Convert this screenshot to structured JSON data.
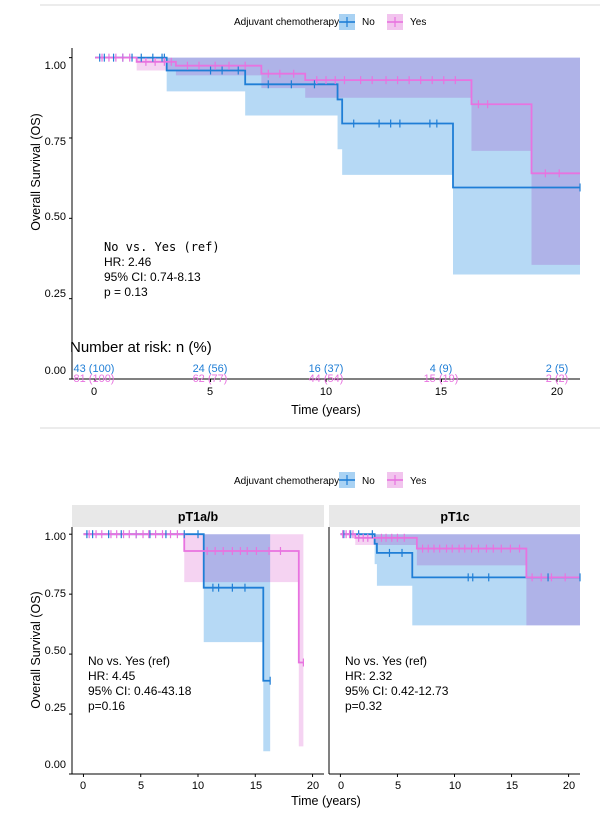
{
  "colors": {
    "no": "#1f7ed6",
    "no_fill": "#a9d2f3",
    "yes": "#e873e0",
    "yes_fill": "#f2c4ee",
    "overlap": "#c4b3f0",
    "strip": "#e8e8e8",
    "divider": "#d9d9d9"
  },
  "legend": {
    "title": "Adjuvant chemotherapy",
    "no": "No",
    "yes": "Yes"
  },
  "top": {
    "ylabel": "Overall Survival (OS)",
    "xlabel": "Time (years)",
    "yticks": [
      "1.00",
      "0.75",
      "0.50",
      "0.25",
      "0.00"
    ],
    "xticks": [
      "0",
      "5",
      "10",
      "15",
      "20"
    ],
    "stats": [
      "No vs. Yes (ref)",
      "HR: 2.46",
      "95% CI: 0.74-8.13",
      "p = 0.13"
    ],
    "risk_title": "Number at risk: n (%)",
    "risk_no": [
      "43 (100)",
      "24 (56)",
      "16 (37)",
      "4 (9)",
      "2 (5)"
    ],
    "risk_yes": [
      "81 (100)",
      "62 (77)",
      "44 (54)",
      "15 (19)",
      "2 (2)"
    ]
  },
  "bottom": {
    "ylabel": "Overall Survival (OS)",
    "xlabel": "Time (years)",
    "yticks": [
      "1.00",
      "0.75",
      "0.50",
      "0.25",
      "0.00"
    ],
    "xticks": [
      "0",
      "5",
      "10",
      "15",
      "20"
    ],
    "left": {
      "strip": "pT1a/b",
      "stats": [
        "No vs. Yes (ref)",
        "HR: 4.45",
        "95% CI: 0.46-43.18",
        "p=0.16"
      ]
    },
    "right": {
      "strip": "pT1c",
      "stats": [
        "No vs. Yes (ref)",
        "HR: 2.32",
        "95% CI: 0.42-12.73",
        "p=0.32"
      ]
    }
  },
  "chart_data": [
    {
      "type": "line",
      "xlabel": "Time (years)",
      "ylabel": "Overall Survival (OS)",
      "xlim": [
        -1,
        21
      ],
      "ylim": [
        0,
        1.03
      ],
      "legend": "top",
      "series": [
        {
          "name": "No",
          "steps": [
            [
              0,
              1.0
            ],
            [
              3.1,
              0.96
            ],
            [
              6.5,
              0.917
            ],
            [
              10.5,
              0.87
            ],
            [
              10.7,
              0.795
            ],
            [
              15.5,
              0.596
            ],
            [
              21,
              0.596
            ]
          ],
          "ci_upper": [
            [
              0,
              1.0
            ],
            [
              3.1,
              1.0
            ],
            [
              6.5,
              1.0
            ],
            [
              10.5,
              1.0
            ],
            [
              10.7,
              1.0
            ],
            [
              15.5,
              1.0
            ],
            [
              21,
              1.0
            ]
          ],
          "ci_lower": [
            [
              0,
              1.0
            ],
            [
              3.1,
              0.895
            ],
            [
              6.5,
              0.82
            ],
            [
              10.5,
              0.715
            ],
            [
              10.7,
              0.635
            ],
            [
              15.5,
              0.325
            ],
            [
              21,
              0.325
            ]
          ],
          "censor_t": [
            0.2,
            0.4,
            0.8,
            1.2,
            1.6,
            2.0,
            2.5,
            2.9,
            3.0,
            5.0,
            5.5,
            6.2,
            7.5,
            8.5,
            9.5,
            11.2,
            12.3,
            12.8,
            13.2,
            14.5,
            14.8,
            21.0
          ]
        },
        {
          "name": "Yes",
          "steps": [
            [
              0,
              1.0
            ],
            [
              1.8,
              0.987
            ],
            [
              3.5,
              0.975
            ],
            [
              7.2,
              0.95
            ],
            [
              9.1,
              0.93
            ],
            [
              16.3,
              0.855
            ],
            [
              18.9,
              0.64
            ],
            [
              21,
              0.64
            ]
          ],
          "ci_upper": [
            [
              0,
              1.0
            ],
            [
              1.8,
              1.0
            ],
            [
              3.5,
              1.0
            ],
            [
              7.2,
              1.0
            ],
            [
              9.1,
              1.0
            ],
            [
              16.3,
              1.0
            ],
            [
              18.9,
              1.0
            ],
            [
              21,
              1.0
            ]
          ],
          "ci_lower": [
            [
              0,
              1.0
            ],
            [
              1.8,
              0.96
            ],
            [
              3.5,
              0.945
            ],
            [
              7.2,
              0.905
            ],
            [
              9.1,
              0.875
            ],
            [
              16.3,
              0.71
            ],
            [
              18.9,
              0.355
            ],
            [
              21,
              0.355
            ]
          ],
          "censor_t": [
            0.3,
            0.6,
            0.9,
            1.2,
            1.5,
            2.2,
            2.6,
            3.0,
            3.3,
            4.0,
            4.5,
            5.2,
            5.8,
            6.5,
            7.5,
            8.0,
            8.6,
            9.6,
            10.0,
            10.4,
            10.8,
            11.5,
            12.0,
            12.6,
            13.1,
            13.6,
            14.1,
            14.6,
            15.1,
            15.6,
            16.6,
            17.0,
            19.5,
            20.1
          ]
        }
      ],
      "risk_table": {
        "times": [
          0,
          5,
          10,
          15,
          20
        ],
        "No": [
          43,
          24,
          16,
          4,
          2
        ],
        "Yes": [
          81,
          62,
          44,
          15,
          2
        ]
      }
    },
    {
      "type": "line",
      "facet": "pT1a/b",
      "xlabel": "Time (years)",
      "ylabel": "Overall Survival (OS)",
      "xlim": [
        -1,
        21
      ],
      "ylim": [
        0,
        1.03
      ],
      "series": [
        {
          "name": "No",
          "steps": [
            [
              0,
              1.0
            ],
            [
              10.5,
              0.777
            ],
            [
              15.7,
              0.389
            ],
            [
              16.3,
              0.389
            ]
          ],
          "ci_upper": [
            [
              0,
              1.0
            ],
            [
              10.5,
              1.0
            ],
            [
              15.7,
              1.0
            ],
            [
              16.3,
              1.0
            ]
          ],
          "ci_lower": [
            [
              0,
              1.0
            ],
            [
              10.5,
              0.55
            ],
            [
              15.7,
              0.095
            ],
            [
              16.3,
              0.095
            ]
          ],
          "censor_t": [
            0.3,
            0.8,
            2.2,
            3.3,
            4.6,
            5.8,
            7.2,
            8.8,
            10.0,
            11.3,
            11.8,
            13.0,
            14.1,
            16.3
          ]
        },
        {
          "name": "Yes",
          "steps": [
            [
              0,
              1.0
            ],
            [
              8.8,
              0.93
            ],
            [
              18.8,
              0.465
            ],
            [
              19.2,
              0.465
            ]
          ],
          "ci_upper": [
            [
              0,
              1.0
            ],
            [
              8.8,
              1.0
            ],
            [
              18.8,
              1.0
            ],
            [
              19.2,
              1.0
            ]
          ],
          "ci_lower": [
            [
              0,
              1.0
            ],
            [
              8.8,
              0.8
            ],
            [
              18.8,
              0.115
            ],
            [
              19.2,
              0.115
            ]
          ],
          "censor_t": [
            0.5,
            1.1,
            1.6,
            2.4,
            2.9,
            3.5,
            4.0,
            4.6,
            5.2,
            5.7,
            6.3,
            6.9,
            7.6,
            8.2,
            10.8,
            11.5,
            12.2,
            13.0,
            13.7,
            14.3,
            15.1,
            16.2,
            17.2,
            19.2
          ]
        }
      ]
    },
    {
      "type": "line",
      "facet": "pT1c",
      "xlabel": "Time (years)",
      "ylabel": "Overall Survival (OS)",
      "xlim": [
        -1,
        21
      ],
      "ylim": [
        0,
        1.03
      ],
      "series": [
        {
          "name": "No",
          "steps": [
            [
              0,
              1.0
            ],
            [
              3.0,
              0.96
            ],
            [
              3.2,
              0.922
            ],
            [
              6.3,
              0.82
            ],
            [
              16.3,
              0.82
            ],
            [
              21,
              0.82
            ]
          ],
          "ci_upper": [
            [
              0,
              1.0
            ],
            [
              3.0,
              1.0
            ],
            [
              3.2,
              1.0
            ],
            [
              6.3,
              1.0
            ],
            [
              16.3,
              1.0
            ],
            [
              21,
              1.0
            ]
          ],
          "ci_lower": [
            [
              0,
              1.0
            ],
            [
              3.0,
              0.875
            ],
            [
              3.2,
              0.785
            ],
            [
              6.3,
              0.62
            ],
            [
              16.3,
              0.62
            ],
            [
              21,
              0.62
            ]
          ],
          "censor_t": [
            0.3,
            0.9,
            1.6,
            2.8,
            4.3,
            5.4,
            11.2,
            11.6,
            13.0,
            18.2,
            21.0
          ]
        },
        {
          "name": "Yes",
          "steps": [
            [
              0,
              1.0
            ],
            [
              1.3,
              0.985
            ],
            [
              6.7,
              0.94
            ],
            [
              16.3,
              0.82
            ],
            [
              21,
              0.82
            ]
          ],
          "ci_upper": [
            [
              0,
              1.0
            ],
            [
              1.3,
              1.0
            ],
            [
              6.7,
              1.0
            ],
            [
              16.3,
              1.0
            ],
            [
              21,
              1.0
            ]
          ],
          "ci_lower": [
            [
              0,
              1.0
            ],
            [
              1.3,
              0.955
            ],
            [
              6.7,
              0.87
            ],
            [
              16.3,
              0.62
            ],
            [
              21,
              0.62
            ]
          ],
          "censor_t": [
            0.2,
            0.5,
            0.8,
            1.1,
            1.6,
            2.0,
            2.4,
            3.6,
            4.0,
            4.5,
            5.0,
            5.6,
            7.2,
            7.7,
            8.2,
            8.7,
            9.3,
            9.8,
            10.4,
            10.9,
            11.5,
            12.1,
            12.8,
            13.4,
            14.1,
            14.9,
            15.7,
            16.8,
            17.6,
            18.5,
            19.7
          ]
        }
      ]
    }
  ]
}
